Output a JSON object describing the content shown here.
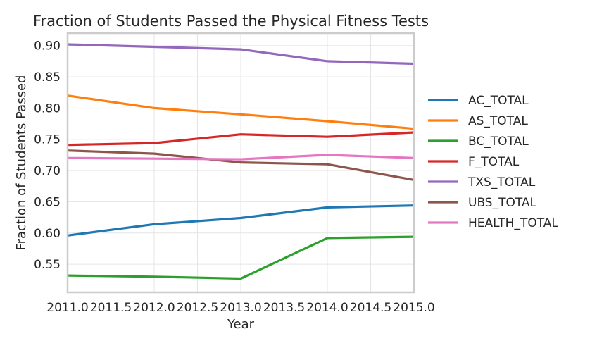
{
  "chart_data": {
    "type": "line",
    "title": "Fraction of Students Passed the Physical Fitness Tests",
    "xlabel": "Year",
    "ylabel": "Fraction of Students Passed",
    "xlim": [
      2011.0,
      2015.0
    ],
    "ylim": [
      0.505,
      0.92
    ],
    "x_ticks": [
      2011.0,
      2011.5,
      2012.0,
      2012.5,
      2013.0,
      2013.5,
      2014.0,
      2014.5,
      2015.0
    ],
    "x_tick_labels": [
      "2011.0",
      "2011.5",
      "2012.0",
      "2012.5",
      "2013.0",
      "2013.5",
      "2014.0",
      "2014.5",
      "2015.0"
    ],
    "y_ticks": [
      0.55,
      0.6,
      0.65,
      0.7,
      0.75,
      0.8,
      0.85,
      0.9
    ],
    "y_tick_labels": [
      "0.55",
      "0.60",
      "0.65",
      "0.70",
      "0.75",
      "0.80",
      "0.85",
      "0.90"
    ],
    "grid": true,
    "legend_position": "outside-right",
    "x": [
      2011,
      2012,
      2013,
      2014,
      2015
    ],
    "series": [
      {
        "name": "AC_TOTAL",
        "color": "#1f77b4",
        "values": [
          0.596,
          0.614,
          0.624,
          0.641,
          0.644
        ]
      },
      {
        "name": "AS_TOTAL",
        "color": "#ff7f0e",
        "values": [
          0.82,
          0.8,
          0.79,
          0.779,
          0.767
        ]
      },
      {
        "name": "BC_TOTAL",
        "color": "#2ca02c",
        "values": [
          0.532,
          0.53,
          0.527,
          0.592,
          0.594
        ]
      },
      {
        "name": "F_TOTAL",
        "color": "#d62728",
        "values": [
          0.741,
          0.744,
          0.758,
          0.754,
          0.761
        ]
      },
      {
        "name": "TXS_TOTAL",
        "color": "#9467bd",
        "values": [
          0.902,
          0.898,
          0.894,
          0.875,
          0.871
        ]
      },
      {
        "name": "UBS_TOTAL",
        "color": "#8c564b",
        "values": [
          0.732,
          0.727,
          0.713,
          0.71,
          0.685
        ]
      },
      {
        "name": "HEALTH_TOTAL",
        "color": "#e377c2",
        "values": [
          0.72,
          0.719,
          0.718,
          0.725,
          0.72
        ]
      }
    ]
  }
}
